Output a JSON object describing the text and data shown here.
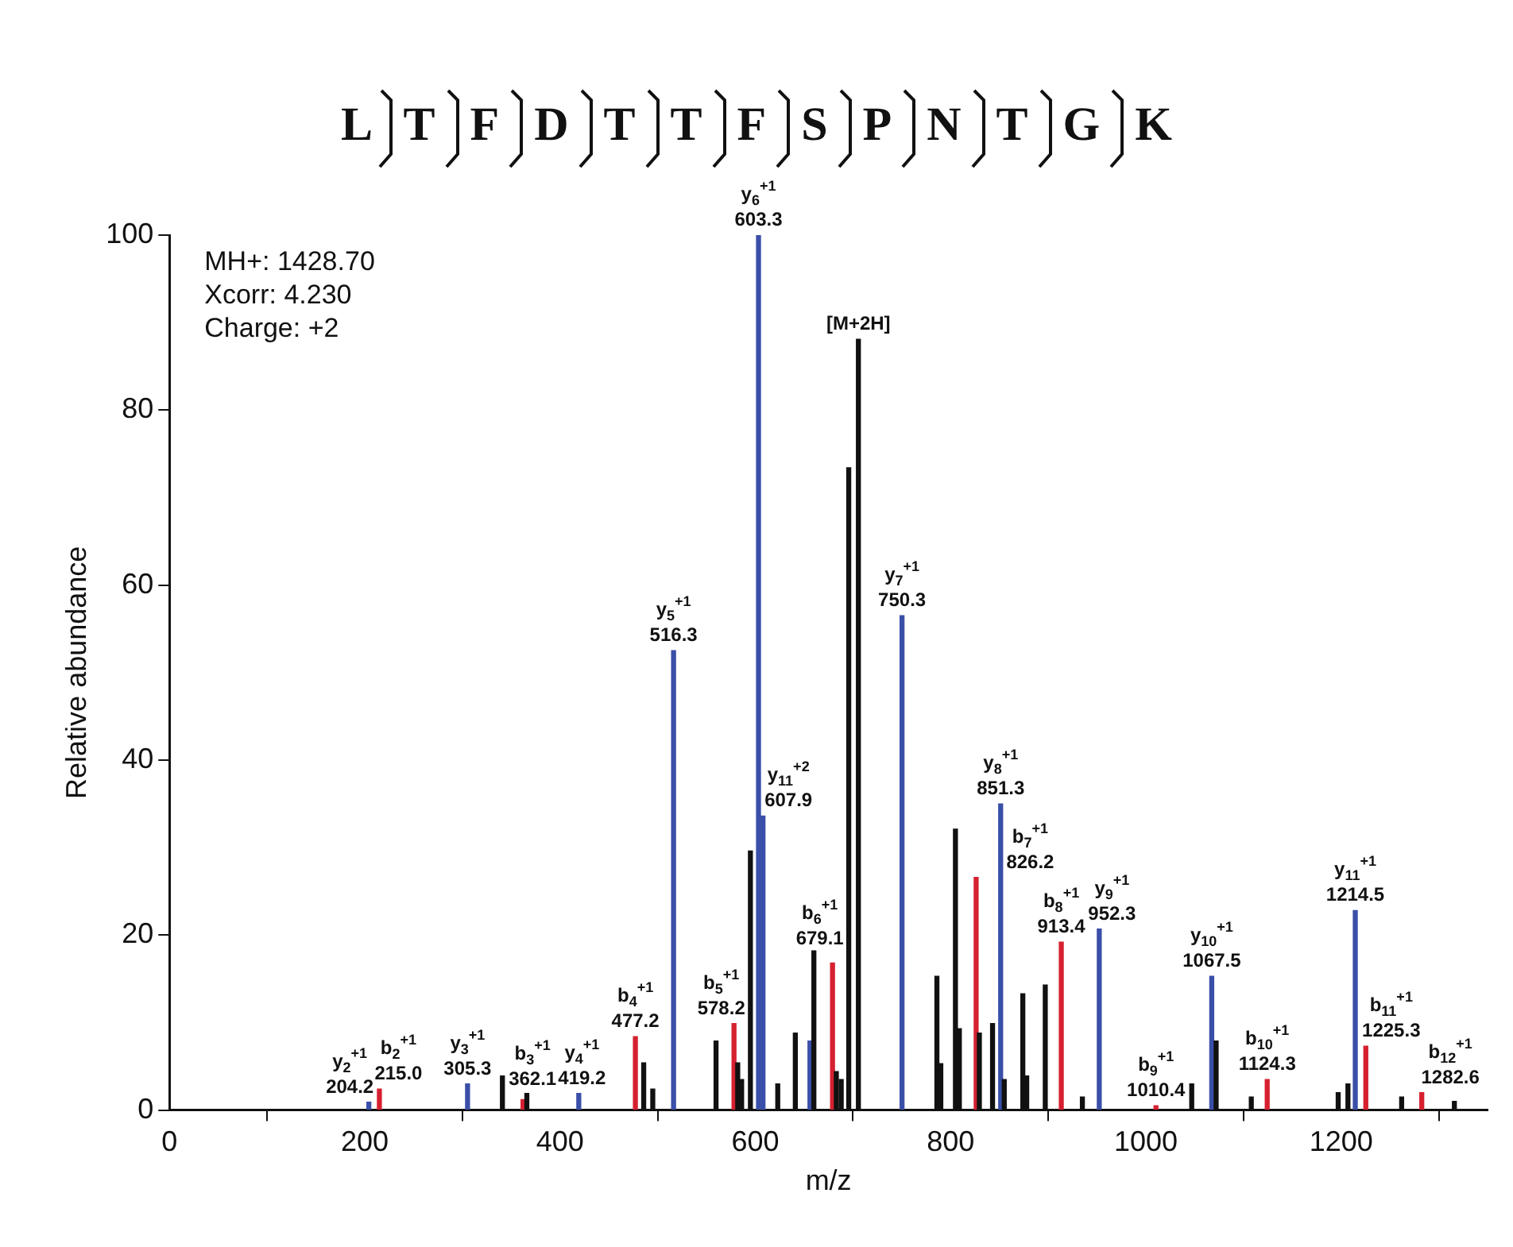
{
  "chart_data": {
    "type": "bar",
    "title": "LTFDTTFSPNTGK",
    "xlabel": "m/z",
    "ylabel": "Relative abundance",
    "xlim": [
      0,
      1350
    ],
    "xticks": [
      0,
      200,
      400,
      600,
      800,
      1000,
      1200
    ],
    "ylim": [
      0,
      100
    ],
    "yticks": [
      0,
      20,
      40,
      60,
      80,
      100
    ],
    "grid": false,
    "legend": false,
    "series": [
      {
        "color": "#111111",
        "x": [
          341,
          366,
          485.7,
          495,
          559.8,
          582,
          586,
          595,
          623,
          641,
          660,
          683,
          688,
          695.7,
          705.6,
          786,
          790,
          805,
          809,
          829.5,
          843,
          855,
          874,
          878,
          897,
          935,
          1047,
          1072,
          1108,
          1197,
          1207,
          1262,
          1316
        ],
        "values": [
          3.9,
          1.9,
          5.4,
          2.4,
          7.9,
          5.4,
          3.5,
          29.6,
          3,
          8.8,
          18.2,
          4.4,
          3.5,
          73.4,
          88.1,
          15.3,
          5.3,
          32.1,
          9.3,
          8.8,
          9.9,
          3.5,
          13.3,
          3.9,
          14.3,
          1.5,
          3,
          7.9,
          1.5,
          2,
          3,
          1.5,
          1
        ]
      },
      {
        "color": "#3a4fa8",
        "x": [
          204.2,
          305.3,
          419.2,
          516.3,
          603.3,
          607.9,
          656,
          750.3,
          851.3,
          952.3,
          1067.5,
          1214.5
        ],
        "values": [
          0.9,
          3,
          1.9,
          52.5,
          100,
          33.6,
          7.9,
          56.5,
          35,
          20.7,
          15.3,
          22.8
        ]
      },
      {
        "color": "#d62030",
        "x": [
          215,
          362.1,
          477.2,
          578.2,
          679.1,
          826.2,
          913.4,
          1010.4,
          1124.3,
          1225.3,
          1282.6
        ],
        "values": [
          2.4,
          1.2,
          8.4,
          9.9,
          16.8,
          26.6,
          19.2,
          0.5,
          3.5,
          7.3,
          2
        ]
      }
    ],
    "annotations": [
      "MH+: 1428.70",
      "Xcorr: 4.230",
      "Charge: +2",
      {
        "text": "y$_{2}$$^{+1}$\n204.2",
        "x": 204.2,
        "y": 0.9
      },
      {
        "text": "b$_{2}$$^{+1}$\n215.0",
        "x": 215,
        "y": 2.4
      },
      {
        "text": "y$_{3}$$^{+1}$\n305.3",
        "x": 305.3,
        "y": 3
      },
      {
        "text": "b$_{3}$$^{+1}$\n362.1",
        "x": 362.1,
        "y": 1.2
      },
      {
        "text": "y$_{4}$$^{+1}$\n419.2",
        "x": 419.2,
        "y": 1.9
      },
      {
        "text": "b$_{4}$$^{+1}$\n477.2",
        "x": 477.2,
        "y": 8.4
      },
      {
        "text": "y$_{5}$$^{+1}$\n516.3",
        "x": 516.3,
        "y": 52.5
      },
      {
        "text": "b$_{5}$$^{+1}$\n578.2",
        "x": 578.2,
        "y": 9.9
      },
      {
        "text": "y$_{6}$$^{+1}$\n603.3",
        "x": 603.3,
        "y": 100
      },
      {
        "text": "y$_{11}$$^{+2}$\n607.9",
        "x": 607.9,
        "y": 33.6
      },
      {
        "text": "b$_{6}$$^{+1}$\n679.1",
        "x": 679.1,
        "y": 16.8
      },
      {
        "text": "[M+2H]",
        "x": 705.6,
        "y": 88.1
      },
      {
        "text": "y$_{7}$$^{+1}$\n750.3",
        "x": 750.3,
        "y": 56.5
      },
      {
        "text": "b$_{7}$$^{+1}$\n826.2",
        "x": 826.2,
        "y": 26.6
      },
      {
        "text": "y$_{8}$$^{+1}$\n851.3",
        "x": 851.3,
        "y": 35
      },
      {
        "text": "b$_{8}$$^{+1}$\n913.4",
        "x": 913.4,
        "y": 19.2
      },
      {
        "text": "y$_{9}$$^{+1}$\n952.3",
        "x": 952.3,
        "y": 20.7
      },
      {
        "text": "b$_{9}$$^{+1}$\n1010.4",
        "x": 1010.4,
        "y": 0.5
      },
      {
        "text": "y$_{10}$$^{+1}$\n1067.5",
        "x": 1067.5,
        "y": 15.3
      },
      {
        "text": "b$_{10}$$^{+1}$\n1124.3",
        "x": 1124.3,
        "y": 3.5
      },
      {
        "text": "y$_{11}$$^{+1}$\n1214.5",
        "x": 1214.5,
        "y": 22.8
      },
      {
        "text": "b$_{11}$$^{+1}$\n1225.3",
        "x": 1225.3,
        "y": 7.3
      },
      {
        "text": "b$_{12}$$^{+1}$\n1282.6",
        "x": 1282.6,
        "y": 2
      }
    ]
  }
}
